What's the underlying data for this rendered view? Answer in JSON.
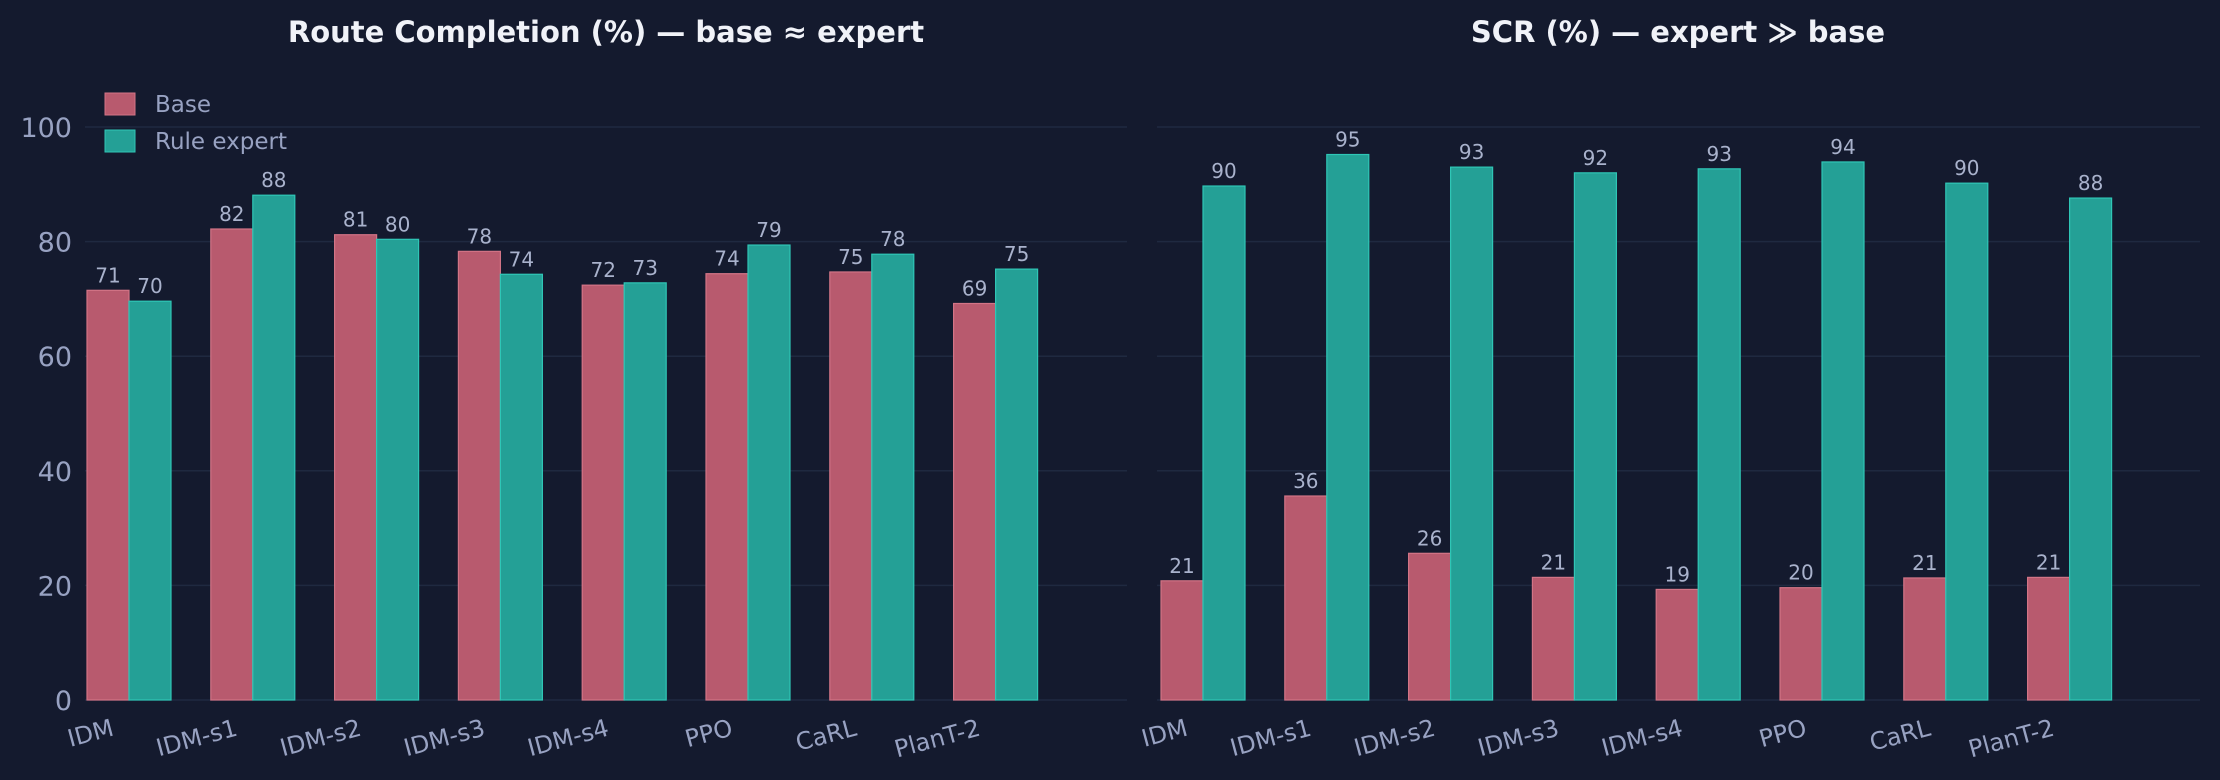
{
  "theme": {
    "background": "#141a2e",
    "grid": "#1f2940",
    "text_title": "#f0f2f8",
    "text_tick": "#98a2c2",
    "text_value": "#a9b2cc",
    "base_fill": "#b85a6e",
    "base_edge": "#d27486",
    "expert_fill": "#24a096",
    "expert_edge": "#2fc6b6"
  },
  "chart_data": [
    {
      "type": "bar",
      "title": "Route Completion (%) — base ≈ expert",
      "xlabel": "",
      "ylabel": "",
      "categories": [
        "IDM",
        "IDM-s1",
        "IDM-s2",
        "IDM-s3",
        "IDM-s4",
        "PPO",
        "CaRL",
        "PlanT-2"
      ],
      "series": [
        {
          "name": "Base",
          "values": [
            71.5,
            82.2,
            81.2,
            78.3,
            72.4,
            74.4,
            74.7,
            69.2
          ],
          "labels": [
            "71",
            "82",
            "81",
            "78",
            "72",
            "74",
            "75",
            "69"
          ]
        },
        {
          "name": "Rule expert",
          "values": [
            69.6,
            88.1,
            80.4,
            74.3,
            72.8,
            79.4,
            77.8,
            75.2
          ],
          "labels": [
            "70",
            "88",
            "80",
            "74",
            "73",
            "79",
            "78",
            "75"
          ]
        }
      ],
      "ylim": [
        0,
        100
      ],
      "yticks": [
        0,
        20,
        40,
        60,
        80,
        100
      ],
      "grid": true,
      "legend": {
        "show": true,
        "placement": "top-left",
        "entries": [
          "Base",
          "Rule expert"
        ]
      }
    },
    {
      "type": "bar",
      "title": "SCR (%) — expert ≫ base",
      "xlabel": "",
      "ylabel": "",
      "categories": [
        "IDM",
        "IDM-s1",
        "IDM-s2",
        "IDM-s3",
        "IDM-s4",
        "PPO",
        "CaRL",
        "PlanT-2"
      ],
      "series": [
        {
          "name": "Base",
          "values": [
            20.8,
            35.6,
            25.6,
            21.4,
            19.3,
            19.6,
            21.3,
            21.4
          ],
          "labels": [
            "21",
            "36",
            "26",
            "21",
            "19",
            "20",
            "21",
            "21"
          ]
        },
        {
          "name": "Rule expert",
          "values": [
            89.7,
            95.2,
            93.0,
            92.0,
            92.7,
            93.9,
            90.2,
            87.6
          ],
          "labels": [
            "90",
            "95",
            "93",
            "92",
            "93",
            "94",
            "90",
            "88"
          ]
        }
      ],
      "ylim": [
        0,
        100
      ],
      "yticks": [
        0,
        20,
        40,
        60,
        80,
        100
      ],
      "grid": true,
      "legend": {
        "show": false
      }
    }
  ]
}
